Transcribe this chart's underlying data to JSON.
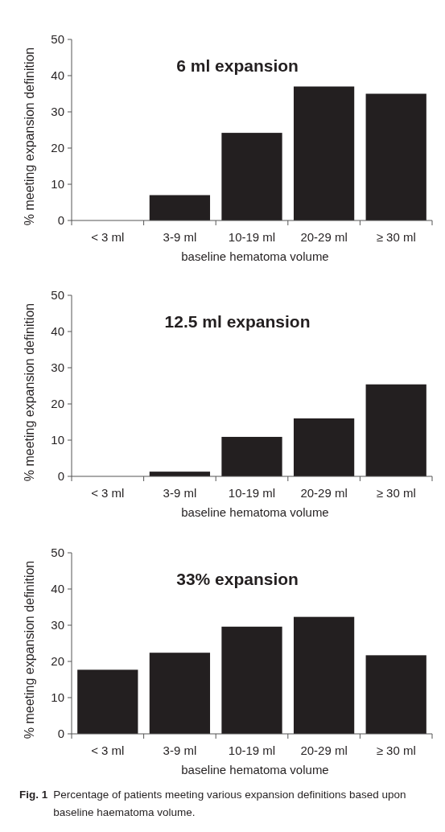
{
  "chart_data": [
    {
      "type": "bar",
      "title": "6 ml expansion",
      "xlabel": "baseline hematoma volume",
      "ylabel": "% meeting expansion definition",
      "categories": [
        "< 3 ml",
        "3-9 ml",
        "10-19 ml",
        "20-29 ml",
        "≥ 30 ml"
      ],
      "values": [
        0,
        7,
        24.2,
        37,
        35
      ],
      "color": "#231f20",
      "ylim": [
        0,
        50
      ],
      "yticks": [
        0,
        10,
        20,
        30,
        40,
        50
      ]
    },
    {
      "type": "bar",
      "title": "12.5 ml expansion",
      "xlabel": "baseline hematoma volume",
      "ylabel": "% meeting expansion definition",
      "categories": [
        "< 3 ml",
        "3-9 ml",
        "10-19 ml",
        "20-29 ml",
        "≥ 30 ml"
      ],
      "values": [
        0,
        1.3,
        10.9,
        16,
        25.4
      ],
      "color": "#231f20",
      "ylim": [
        0,
        50
      ],
      "yticks": [
        0,
        10,
        20,
        30,
        40,
        50
      ]
    },
    {
      "type": "bar",
      "title": "33% expansion",
      "xlabel": "baseline hematoma volume",
      "ylabel": "% meeting expansion definition",
      "categories": [
        "< 3 ml",
        "3-9 ml",
        "10-19 ml",
        "20-29 ml",
        "≥ 30 ml"
      ],
      "values": [
        17.7,
        22.4,
        29.6,
        32.3,
        21.7
      ],
      "color": "#231f20",
      "ylim": [
        0,
        50
      ],
      "yticks": [
        0,
        10,
        20,
        30,
        40,
        50
      ],
      "annotations": [
        "Fig. 1",
        "Percentage of patients meeting various expansion definitions based upon baseline haematoma volume."
      ]
    }
  ]
}
